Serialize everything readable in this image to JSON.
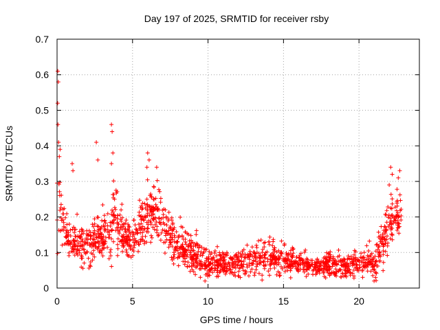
{
  "chart_data": {
    "type": "scatter",
    "title": "Day 197 of 2025, SRMTID for receiver rsby",
    "xlabel": "GPS time / hours",
    "ylabel": "SRMTID / TECUs",
    "xlim": [
      0,
      24
    ],
    "ylim": [
      0,
      0.7
    ],
    "xticks": [
      0,
      5,
      10,
      15,
      20
    ],
    "yticks": [
      0,
      0.1,
      0.2,
      0.3,
      0.4,
      0.5,
      0.6,
      0.7
    ],
    "xtick_labels": [
      "0",
      "5",
      "10",
      "15",
      "20"
    ],
    "ytick_labels": [
      "0",
      "0.1",
      "0.2",
      "0.3",
      "0.4",
      "0.5",
      "0.6",
      "0.7"
    ],
    "grid": true,
    "marker": "+",
    "color": "#ff0000",
    "series": [
      {
        "name": "SRMTID",
        "envelope_hours": [
          0.0,
          0.1,
          0.2,
          0.3,
          0.5,
          0.7,
          1.0,
          1.5,
          2.0,
          2.5,
          3.0,
          3.5,
          3.7,
          4.0,
          4.5,
          5.0,
          5.5,
          6.0,
          6.5,
          7.0,
          7.5,
          8.0,
          8.5,
          9.0,
          9.5,
          10.0,
          11.0,
          12.0,
          13.0,
          14.0,
          15.0,
          16.0,
          17.0,
          18.0,
          19.0,
          20.0,
          20.5,
          21.0,
          21.5,
          22.0,
          22.5,
          22.8
        ],
        "envelope_mean": [
          0.3,
          0.35,
          0.24,
          0.2,
          0.17,
          0.14,
          0.14,
          0.12,
          0.12,
          0.13,
          0.14,
          0.16,
          0.22,
          0.18,
          0.14,
          0.13,
          0.17,
          0.21,
          0.22,
          0.18,
          0.14,
          0.12,
          0.11,
          0.1,
          0.09,
          0.07,
          0.07,
          0.07,
          0.08,
          0.09,
          0.08,
          0.07,
          0.06,
          0.065,
          0.06,
          0.07,
          0.08,
          0.06,
          0.13,
          0.19,
          0.2,
          0.22
        ],
        "envelope_spread": [
          0.2,
          0.18,
          0.1,
          0.08,
          0.06,
          0.05,
          0.05,
          0.05,
          0.05,
          0.06,
          0.06,
          0.07,
          0.1,
          0.07,
          0.05,
          0.05,
          0.06,
          0.07,
          0.07,
          0.06,
          0.05,
          0.05,
          0.05,
          0.05,
          0.05,
          0.04,
          0.03,
          0.035,
          0.04,
          0.045,
          0.04,
          0.03,
          0.025,
          0.03,
          0.03,
          0.03,
          0.04,
          0.04,
          0.07,
          0.07,
          0.06,
          0.08
        ],
        "peaks": [
          {
            "x": 0.05,
            "y": 0.61
          },
          {
            "x": 0.08,
            "y": 0.58
          },
          {
            "x": 0.04,
            "y": 0.52
          },
          {
            "x": 0.06,
            "y": 0.46
          },
          {
            "x": 0.1,
            "y": 0.41
          },
          {
            "x": 0.2,
            "y": 0.39
          },
          {
            "x": 0.15,
            "y": 0.37
          },
          {
            "x": 1.0,
            "y": 0.35
          },
          {
            "x": 1.05,
            "y": 0.33
          },
          {
            "x": 2.6,
            "y": 0.41
          },
          {
            "x": 2.7,
            "y": 0.36
          },
          {
            "x": 3.6,
            "y": 0.46
          },
          {
            "x": 3.65,
            "y": 0.44
          },
          {
            "x": 3.7,
            "y": 0.38
          },
          {
            "x": 3.6,
            "y": 0.35
          },
          {
            "x": 6.0,
            "y": 0.38
          },
          {
            "x": 6.1,
            "y": 0.36
          },
          {
            "x": 5.95,
            "y": 0.34
          },
          {
            "x": 6.6,
            "y": 0.34
          },
          {
            "x": 22.1,
            "y": 0.34
          },
          {
            "x": 22.2,
            "y": 0.32
          },
          {
            "x": 22.7,
            "y": 0.33
          },
          {
            "x": 22.6,
            "y": 0.31
          },
          {
            "x": 22.0,
            "y": 0.29
          },
          {
            "x": 21.0,
            "y": 0.02
          },
          {
            "x": 21.1,
            "y": 0.03
          },
          {
            "x": 9.8,
            "y": 0.02
          }
        ]
      }
    ]
  }
}
